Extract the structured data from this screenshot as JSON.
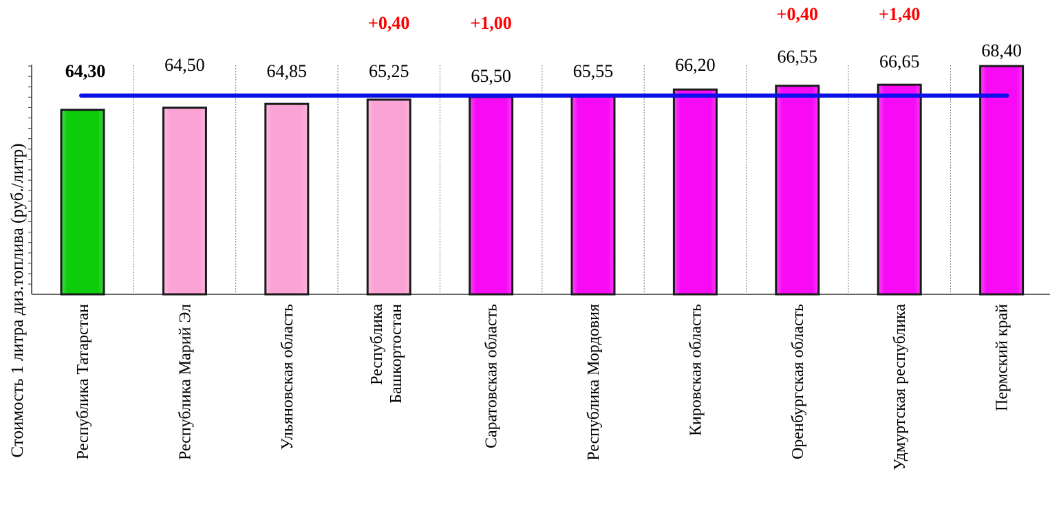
{
  "chart_data": {
    "type": "bar",
    "categories": [
      "Республика Татарстан",
      "Республика Марий Эл",
      "Ульяновская область",
      "Республика Башкортостан",
      "Саратовская область",
      "Республика Мордовия",
      "Кировская область",
      "Оренбургская область",
      "Удмуртская республика",
      "Пермский край"
    ],
    "values": [
      64.3,
      64.5,
      64.85,
      65.25,
      65.5,
      65.55,
      66.2,
      66.55,
      66.65,
      68.4
    ],
    "value_labels": [
      "64,30",
      "64,50",
      "64,85",
      "65,25",
      "65,50",
      "65,55",
      "66,20",
      "66,55",
      "66,65",
      "68,40"
    ],
    "change_labels": [
      "",
      "",
      "",
      "+0,40",
      "+1,00",
      "",
      "",
      "+0,40",
      "+1,40",
      ""
    ],
    "ylabel": "Стоимость 1 литра диз.топлива (руб./литр)",
    "ylim": [
      47,
      69.5
    ],
    "reference_line_value": 65.9,
    "grid": "vertical category separators",
    "colors": {
      "highlight": "#0ccc0c",
      "below_line": "#fba3d5",
      "above_line": "#f80af5",
      "bar_outline": "#1a1a1a",
      "reference_line": "#0a10e6",
      "change_label": "#ff0000",
      "text": "#000000"
    }
  }
}
